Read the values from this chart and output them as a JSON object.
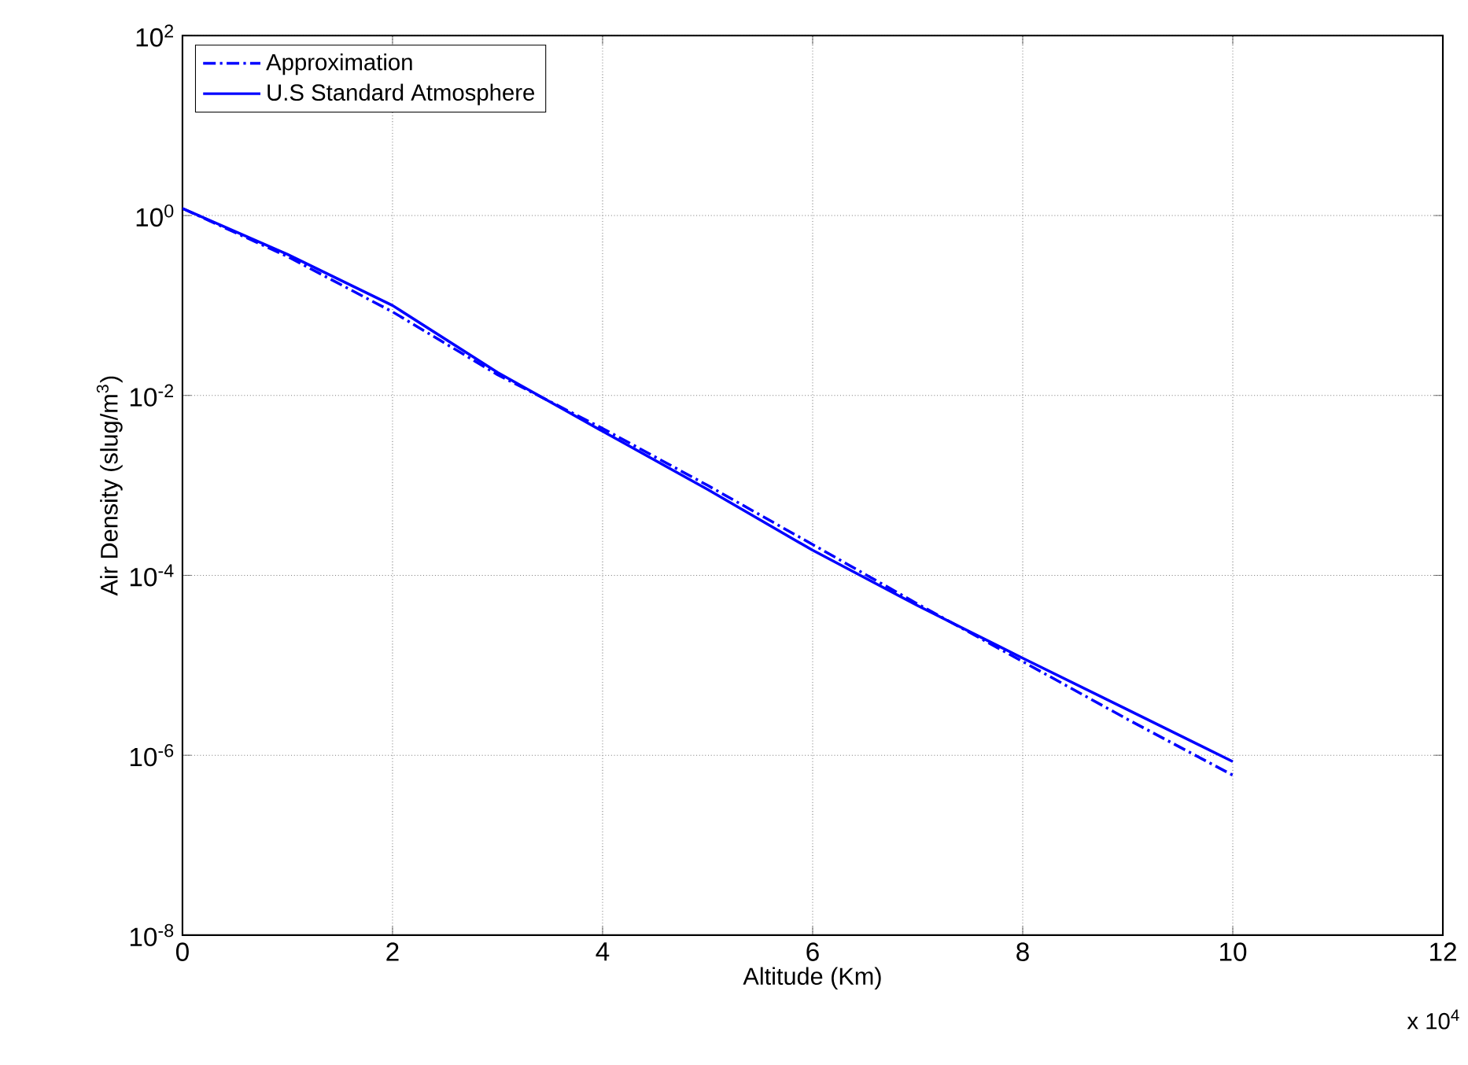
{
  "chart_data": {
    "type": "line",
    "xlabel": "Altitude (Km)",
    "ylabel": "Air Density (slug/m$^{3}$)",
    "x": [
      0,
      1,
      2,
      3,
      4,
      5,
      6,
      7,
      8,
      9,
      10
    ],
    "series": [
      {
        "name": "Approximation",
        "color": "#0000ff",
        "line_style": "dashdot",
        "values": [
          1.2,
          0.35,
          0.085,
          0.017,
          0.0043,
          0.001,
          0.00022,
          4.8e-05,
          1.1e-05,
          2.5e-06,
          6e-07
        ]
      },
      {
        "name": "U.S Standard Atmosphere",
        "color": "#0000ff",
        "line_style": "solid",
        "values": [
          1.2,
          0.37,
          0.1,
          0.018,
          0.004,
          0.0009,
          0.00019,
          4.6e-05,
          1.2e-05,
          3.2e-06,
          8.5e-07
        ]
      }
    ],
    "log": "y",
    "xlim": [
      0,
      12
    ],
    "ylim": [
      1e-08,
      100
    ],
    "xticks": [
      0,
      2,
      4,
      6,
      8,
      10,
      12
    ],
    "yticks": [
      {
        "value": 1e-08,
        "label": "10$^{-8}$"
      },
      {
        "value": 1e-06,
        "label": "10$^{-6}$"
      },
      {
        "value": 0.0001,
        "label": "10$^{-4}$"
      },
      {
        "value": 0.01,
        "label": "10$^{-2}$"
      },
      {
        "value": 1,
        "label": "10$^{0}$"
      },
      {
        "value": 100,
        "label": "10$^{2}$"
      }
    ],
    "grid": true,
    "legend": "top left",
    "marker": "none",
    "annotations": [
      "x 10$^{4}$"
    ]
  }
}
